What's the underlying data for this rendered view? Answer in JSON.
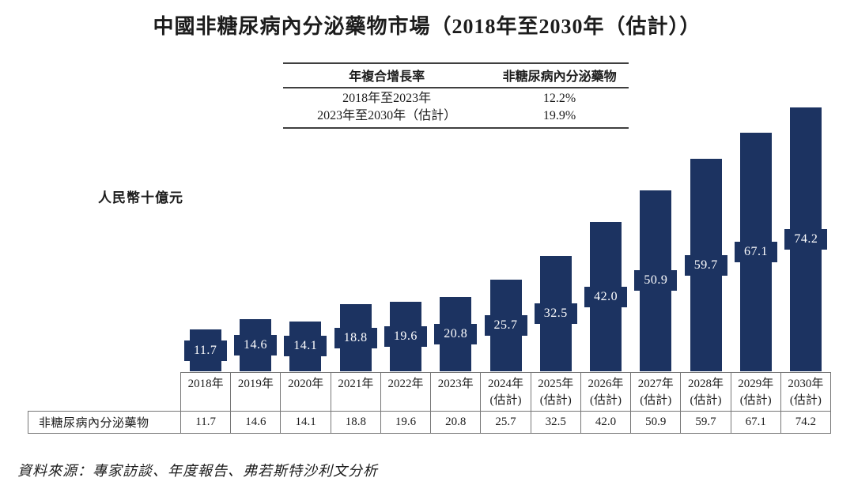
{
  "title": "中國非糖尿病內分泌藥物市場（2018年至2030年（估計））",
  "cagr_table": {
    "col1_header": "年複合增長率",
    "col2_header": "非糖尿病內分泌藥物",
    "rows": [
      {
        "period": "2018年至2023年",
        "value": "12.2%"
      },
      {
        "period": "2023年至2030年（估計）",
        "value": "19.9%"
      }
    ]
  },
  "chart_data": {
    "type": "bar",
    "title": "中國非糖尿病內分泌藥物市場（2018年至2030年（估計））",
    "ylabel": "人民幣十億元",
    "categories": [
      {
        "label": "2018年",
        "note": ""
      },
      {
        "label": "2019年",
        "note": ""
      },
      {
        "label": "2020年",
        "note": ""
      },
      {
        "label": "2021年",
        "note": ""
      },
      {
        "label": "2022年",
        "note": ""
      },
      {
        "label": "2023年",
        "note": ""
      },
      {
        "label": "2024年",
        "note": "(估計)"
      },
      {
        "label": "2025年",
        "note": "(估計)"
      },
      {
        "label": "2026年",
        "note": "(估計)"
      },
      {
        "label": "2027年",
        "note": "(估計)"
      },
      {
        "label": "2028年",
        "note": "(估計)"
      },
      {
        "label": "2029年",
        "note": "(估計)"
      },
      {
        "label": "2030年",
        "note": "(估計)"
      }
    ],
    "values": [
      11.7,
      14.6,
      14.1,
      18.8,
      19.6,
      20.8,
      25.7,
      32.5,
      42.0,
      50.9,
      59.7,
      67.1,
      74.2
    ],
    "ylim": [
      0,
      76
    ],
    "grid": false,
    "legend": "none",
    "bar_color": "#1c3361",
    "value_label_color": "#ffffff"
  },
  "data_table": {
    "row_label": "非糖尿病內分泌藥物",
    "values": [
      "11.7",
      "14.6",
      "14.1",
      "18.8",
      "19.6",
      "20.8",
      "25.7",
      "32.5",
      "42.0",
      "50.9",
      "59.7",
      "67.1",
      "74.2"
    ]
  },
  "source": "資料來源：專家訪談、年度報告、弗若斯特沙利文分析"
}
